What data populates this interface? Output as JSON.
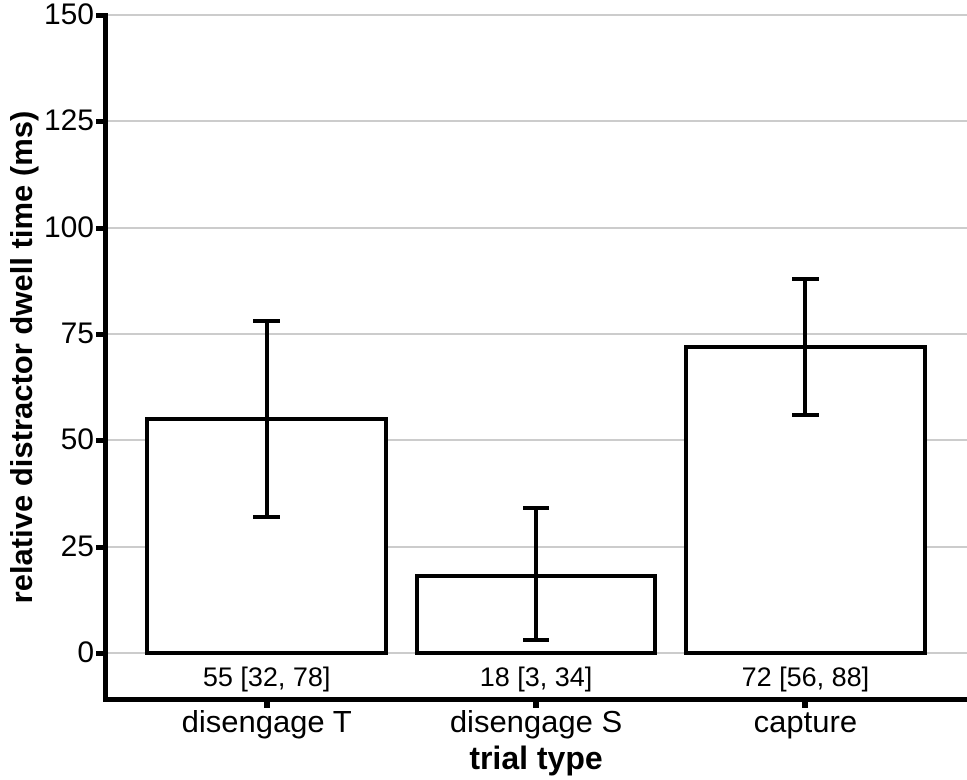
{
  "chart_data": {
    "type": "bar",
    "title": "",
    "xlabel": "trial type",
    "ylabel": "relative distractor dwell time (ms)",
    "categories": [
      "disengage T",
      "disengage S",
      "capture"
    ],
    "values": [
      55,
      18,
      72
    ],
    "error_bars": [
      {
        "low": 32,
        "high": 78
      },
      {
        "low": 3,
        "high": 34
      },
      {
        "low": 56,
        "high": 88
      }
    ],
    "bar_annotations": [
      "55 [32, 78]",
      "18 [3, 34]",
      "72 [56, 88]"
    ],
    "y_ticks": [
      0,
      25,
      50,
      75,
      100,
      125,
      150
    ],
    "ylim": [
      -11,
      150
    ],
    "grid": "horizontal-only",
    "legend": "none",
    "bar_fill": "#ffffff",
    "bar_border": "#000000",
    "gridline_color": "#cccccc",
    "axis_color": "#000000",
    "text_color": "#000000"
  }
}
